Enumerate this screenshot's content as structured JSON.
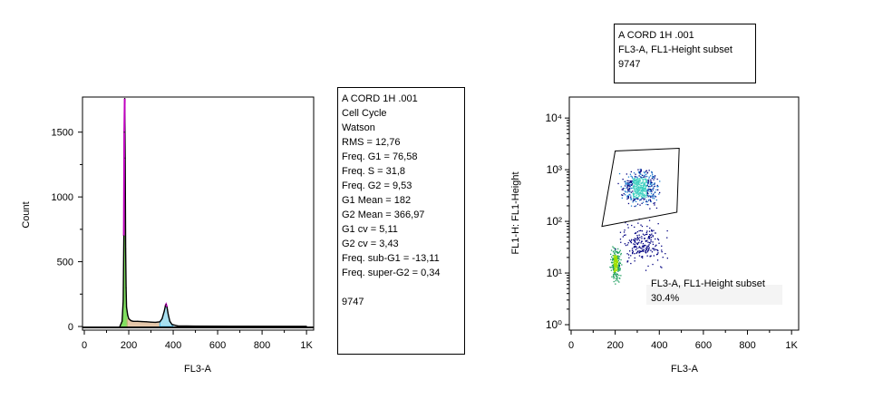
{
  "histogram": {
    "chart_data": {
      "type": "area",
      "xlabel": "FL3-A",
      "ylabel": "Count",
      "x_ticks": [
        "0",
        "200",
        "400",
        "600",
        "800",
        "1K"
      ],
      "y_ticks": [
        "0",
        "500",
        "1000",
        "1500"
      ],
      "xlim": [
        0,
        1024
      ],
      "ylim": [
        0,
        1750
      ],
      "x": [
        160,
        170,
        175,
        178,
        180,
        182,
        184,
        186,
        188,
        190,
        195,
        200,
        210,
        220,
        240,
        260,
        280,
        300,
        320,
        340,
        350,
        360,
        365,
        368,
        372,
        378,
        385,
        395,
        420,
        500,
        700,
        1000
      ],
      "values": [
        0,
        40,
        200,
        700,
        1500,
        1760,
        1300,
        600,
        300,
        150,
        90,
        60,
        45,
        40,
        40,
        38,
        36,
        34,
        32,
        36,
        60,
        120,
        160,
        170,
        150,
        90,
        40,
        15,
        5,
        3,
        2,
        1
      ],
      "series_colors": {
        "outline": "#000000",
        "g1_fit": "#c000c0",
        "s_phase": "#d2a070",
        "g2_fit": "#40b0e0",
        "g1_fill": "#80e060"
      }
    }
  },
  "histogram_stats": {
    "lines": [
      "A CORD 1H .001",
      "Cell Cycle",
      "Watson",
      "RMS = 12,76",
      "Freq. G1  = 76,58",
      "Freq. S = 31,8",
      "Freq. G2 = 9,53",
      "G1 Mean = 182",
      "G2 Mean = 366,97",
      "G1 cv = 5,11",
      "G2 cv = 3,43",
      "Freq. sub-G1  = -13,11",
      "Freq. super-G2 = 0,34",
      "",
      "9747"
    ]
  },
  "scatter": {
    "header_lines": [
      "A CORD 1H .001",
      "FL3-A, FL1-Height subset",
      "9747"
    ],
    "chart_data": {
      "type": "scatter",
      "xlabel": "FL3-A",
      "ylabel": "FL1-H: FL1-Height",
      "x_ticks": [
        "0",
        "200",
        "400",
        "600",
        "800",
        "1K"
      ],
      "y_ticks": [
        "10⁰",
        "10¹",
        "10²",
        "10³",
        "10⁴"
      ],
      "xlim": [
        0,
        1024
      ],
      "ylim": [
        1,
        20000
      ],
      "y_scale": "log",
      "gate": {
        "label": "FL3-A, FL1-Height subset",
        "percent": "30.4%",
        "polygon": [
          [
            140,
            80
          ],
          [
            200,
            2300
          ],
          [
            490,
            2600
          ],
          [
            480,
            150
          ]
        ]
      },
      "clusters": [
        {
          "name": "",
          "x_range": [
            170,
            230
          ],
          "y_range": [
            6,
            40
          ],
          "density": "high",
          "color": "#40c040"
        },
        {
          "name": "",
          "x_range": [
            200,
            420
          ],
          "y_range": [
            150,
            1400
          ],
          "density": "medium",
          "color": "#30a0d0"
        },
        {
          "name": "",
          "x_range": [
            180,
            460
          ],
          "y_range": [
            10,
            150
          ],
          "density": "low",
          "color": "#000080"
        }
      ]
    }
  }
}
